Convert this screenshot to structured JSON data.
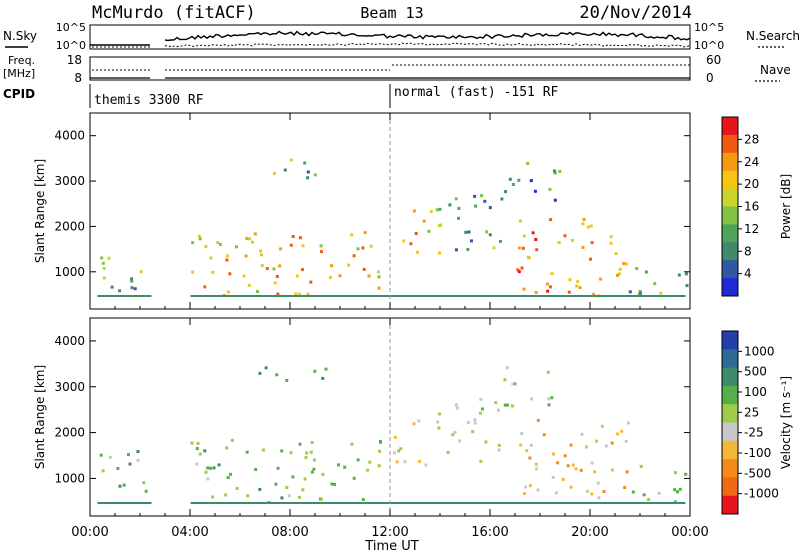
{
  "header": {
    "station": "McMurdo (fitACF)",
    "beam": "Beam 13",
    "date": "20/Nov/2014"
  },
  "strips": {
    "noise_left_label": "N.Sky",
    "noise_ticks_left": [
      "10^5",
      "10^0"
    ],
    "noise_right_label": "N.Search",
    "noise_ticks_right": [
      "10^5",
      "10^0"
    ],
    "freq_label_1": "Freq.",
    "freq_label_2": "[MHz]",
    "freq_ticks": [
      "18",
      "8"
    ],
    "nave_label": "Nave",
    "nave_ticks": [
      "60",
      "0"
    ],
    "cpid_label": "CPID",
    "cpid_modes": [
      {
        "text": "themis 3300 RF",
        "start_hour": 0,
        "end_hour": 12
      },
      {
        "text": "normal (fast) -151 RF",
        "start_hour": 12,
        "end_hour": 24
      }
    ]
  },
  "colorbars": {
    "power": {
      "label": "Power [dB]",
      "ticks": [
        "28",
        "24",
        "20",
        "16",
        "12",
        "8",
        "4"
      ],
      "colors": [
        "#e8141c",
        "#f05a10",
        "#f59a12",
        "#f7c413",
        "#c9d42c",
        "#80c241",
        "#4fa35a",
        "#3e8a6b",
        "#2f58a0",
        "#1e2cd8"
      ]
    },
    "velocity": {
      "label": "Velocity [m s⁻¹]",
      "ticks": [
        "1000",
        "500",
        "100",
        "25",
        "-25",
        "-100",
        "-500",
        "-1000"
      ],
      "colors": [
        "#2140a8",
        "#2e6a96",
        "#3c8b6a",
        "#55b04a",
        "#9dcc4a",
        "#c8c8c8",
        "#f5b73a",
        "#f58a1a",
        "#f06a14",
        "#e8141c"
      ]
    }
  },
  "chart_data": [
    {
      "type": "heatmap",
      "title": "",
      "quantity": "Power",
      "xlabel": "Time UT",
      "ylabel": "Slant Range [km]",
      "x_ticks": [
        "00:00",
        "04:00",
        "08:00",
        "12:00",
        "16:00",
        "20:00",
        "00:00"
      ],
      "y_ticks": [
        "1000",
        "2000",
        "3000",
        "4000"
      ],
      "xlim_hours": [
        0,
        24
      ],
      "ylim_km": [
        180,
        4500
      ],
      "colorbar_unit": "dB",
      "colorbar_range": [
        0,
        30
      ],
      "echo_regions": [
        {
          "t0": 0.3,
          "t1": 2.3,
          "r0": 600,
          "r1": 1650,
          "value": 12
        },
        {
          "t0": 4.0,
          "t1": 11.8,
          "r0": 500,
          "r1": 1900,
          "value": 20
        },
        {
          "t0": 6.5,
          "t1": 9.5,
          "r0": 3100,
          "r1": 3500,
          "value": 10
        },
        {
          "t0": 12.1,
          "t1": 14.0,
          "r0": 1300,
          "r1": 2500,
          "value": 18
        },
        {
          "t0": 14.0,
          "t1": 16.5,
          "r0": 1400,
          "r1": 2800,
          "value": 10
        },
        {
          "t0": 16.5,
          "t1": 18.8,
          "r0": 2600,
          "r1": 3500,
          "value": 8
        },
        {
          "t0": 17.0,
          "t1": 21.5,
          "r0": 500,
          "r1": 2300,
          "value": 22
        },
        {
          "t0": 21.5,
          "t1": 24.0,
          "r0": 500,
          "r1": 1300,
          "value": 10
        }
      ]
    },
    {
      "type": "heatmap",
      "title": "",
      "quantity": "Velocity",
      "xlabel": "Time UT",
      "ylabel": "Slant Range [km]",
      "x_ticks": [
        "00:00",
        "04:00",
        "08:00",
        "12:00",
        "16:00",
        "20:00",
        "00:00"
      ],
      "y_ticks": [
        "1000",
        "2000",
        "3000",
        "4000"
      ],
      "xlim_hours": [
        0,
        24
      ],
      "ylim_km": [
        180,
        4500
      ],
      "colorbar_unit": "m s^-1",
      "colorbar_range": [
        -1000,
        1000
      ],
      "echo_regions": [
        {
          "t0": 0.3,
          "t1": 2.3,
          "r0": 600,
          "r1": 1650,
          "value": 200
        },
        {
          "t0": 4.0,
          "t1": 11.8,
          "r0": 500,
          "r1": 1900,
          "value": 200
        },
        {
          "t0": 6.5,
          "t1": 9.5,
          "r0": 3100,
          "r1": 3500,
          "value": 300
        },
        {
          "t0": 12.1,
          "t1": 14.0,
          "r0": 1300,
          "r1": 2500,
          "value": -100
        },
        {
          "t0": 14.0,
          "t1": 16.5,
          "r0": 1400,
          "r1": 2800,
          "value": 50
        },
        {
          "t0": 16.5,
          "t1": 18.8,
          "r0": 2600,
          "r1": 3500,
          "value": 100
        },
        {
          "t0": 17.0,
          "t1": 21.5,
          "r0": 500,
          "r1": 2300,
          "value": -300
        },
        {
          "t0": 21.5,
          "t1": 24.0,
          "r0": 500,
          "r1": 1300,
          "value": 150
        }
      ]
    }
  ]
}
